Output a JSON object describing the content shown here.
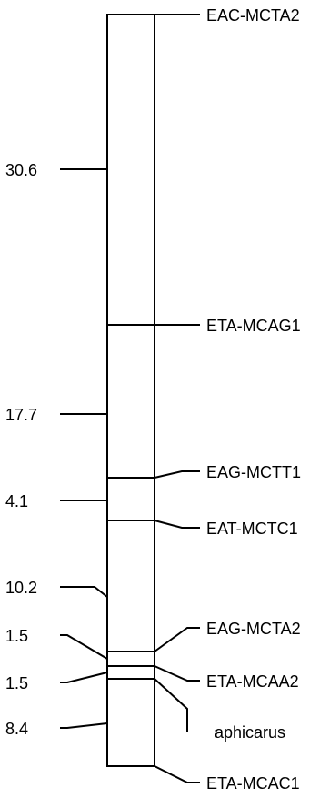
{
  "linkage_map": {
    "distances": [
      "30.6",
      "17.7",
      "4.1",
      "10.2",
      "1.5",
      "1.5",
      "8.4"
    ],
    "markers": [
      "EAC-MCTA2",
      "ETA-MCAG1",
      "EAG-MCTT1",
      "EAT-MCTC1",
      "EAG-MCTA2",
      "ETA-MCAA2",
      "aphicarus",
      "ETA-MCAC1"
    ]
  },
  "colors": {
    "line": "#000000",
    "background": "#ffffff"
  }
}
